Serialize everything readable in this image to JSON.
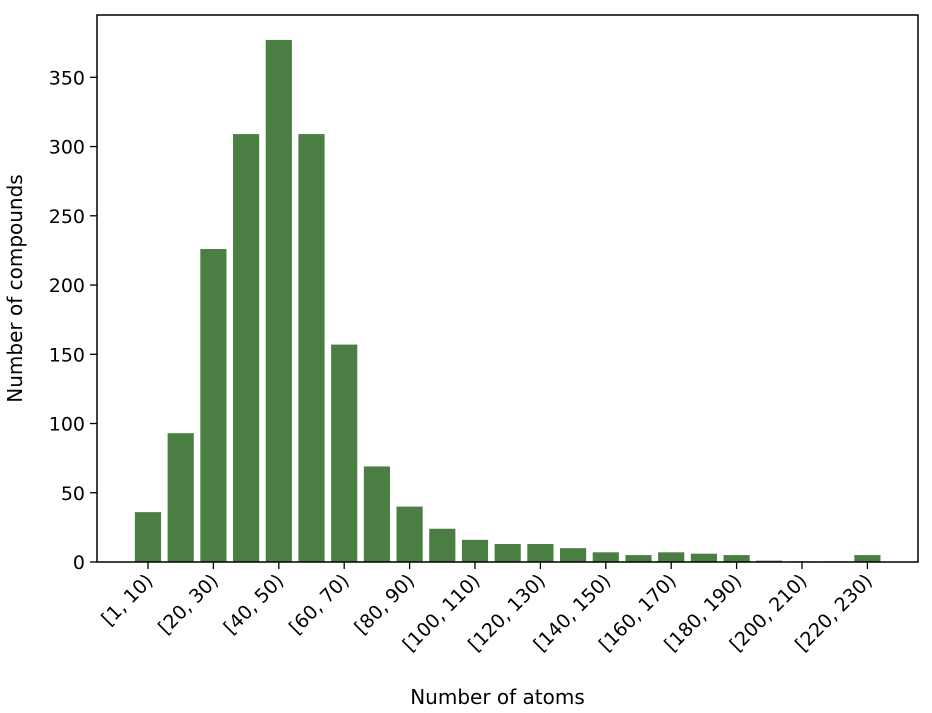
{
  "chart_data": {
    "type": "bar",
    "xlabel": "Number of atoms",
    "ylabel": "Number of compounds",
    "bar_color": "#4a7e42",
    "ylim": [
      0,
      395
    ],
    "yticks": [
      0,
      50,
      100,
      150,
      200,
      250,
      300,
      350
    ],
    "categories": [
      "[1, 10)",
      "[10, 20)",
      "[20, 30)",
      "[30, 40)",
      "[40, 50)",
      "[50, 60)",
      "[60, 70)",
      "[70, 80)",
      "[80, 90)",
      "[90, 100)",
      "[100, 110)",
      "[110, 120)",
      "[120, 130)",
      "[130, 140)",
      "[140, 150)",
      "[150, 160)",
      "[160, 170)",
      "[170, 180)",
      "[180, 190)",
      "[190, 200)",
      "[200, 210)",
      "[210, 220)",
      "[220, 230)"
    ],
    "tick_labels_shown": [
      "[1, 10)",
      "[20, 30)",
      "[40, 50)",
      "[60, 70)",
      "[80, 90)",
      "[100, 110)",
      "[120, 130)",
      "[140, 150)",
      "[160, 170)",
      "[180, 190)",
      "[200, 210)",
      "[220, 230)"
    ],
    "values": [
      36,
      93,
      226,
      309,
      377,
      309,
      157,
      69,
      40,
      24,
      16,
      13,
      13,
      10,
      7,
      5,
      7,
      6,
      5,
      1,
      0.5,
      0.5,
      5
    ]
  }
}
